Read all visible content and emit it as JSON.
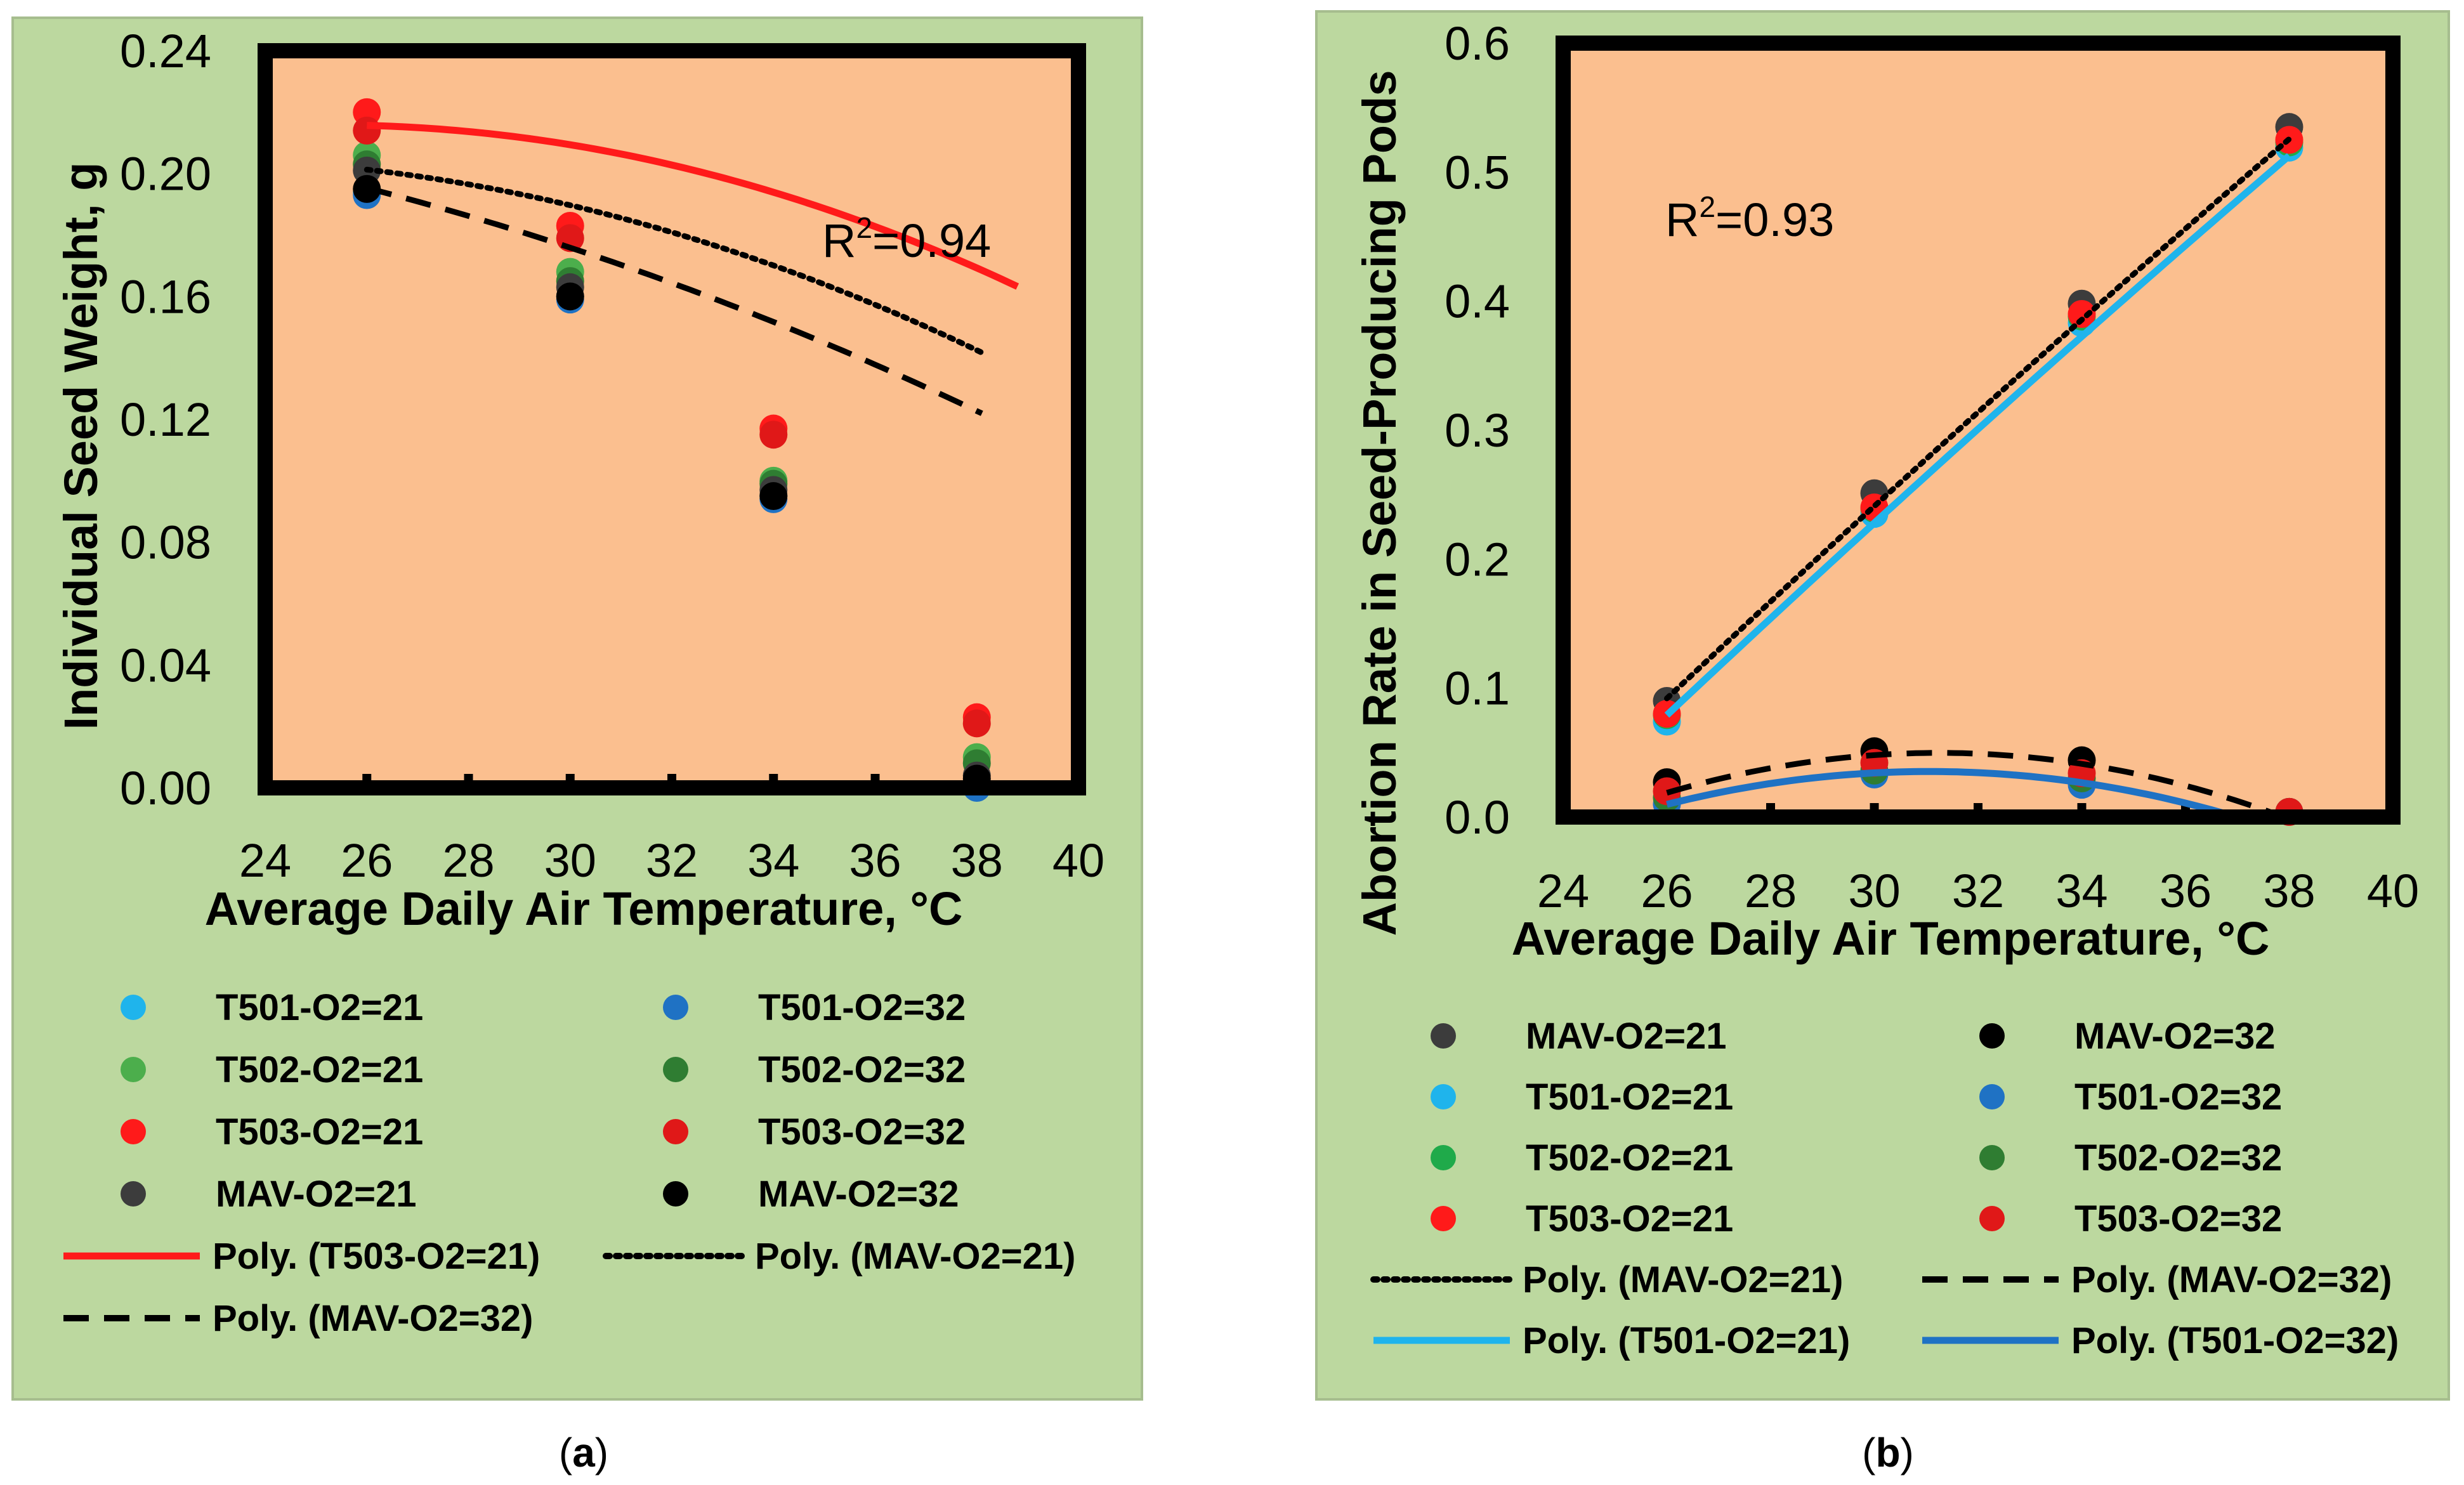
{
  "chart_data": [
    {
      "type": "scatter",
      "panel": "a",
      "caption": {
        "open": "(",
        "letter": "a",
        "close": ")"
      },
      "xlabel": "Average Daily Air Temperature,  °C",
      "ylabel": "Individual Seed Weight,  g",
      "xlim": [
        24,
        40
      ],
      "ylim": [
        0,
        0.24
      ],
      "xticks": [
        24,
        26,
        28,
        30,
        32,
        34,
        36,
        38,
        40
      ],
      "xtick_labels": [
        "24",
        "26",
        "28",
        "30",
        "32",
        "34",
        "36",
        "38",
        "40"
      ],
      "yticks": [
        0,
        0.04,
        0.08,
        0.12,
        0.16,
        0.2,
        0.24
      ],
      "ytick_labels": [
        "0.00",
        "0.04",
        "0.08",
        "0.12",
        "0.16",
        "0.20",
        "0.24"
      ],
      "annotation": {
        "base": "R",
        "sup": "2",
        "rest": "=0.94"
      },
      "x": [
        26,
        30,
        34,
        38
      ],
      "series": [
        {
          "name": "T501-O2=21",
          "color": "#1fb4ec",
          "values": [
            0.194,
            0.16,
            0.095,
            0.001
          ]
        },
        {
          "name": "T501-O2=32",
          "color": "#1f72c4",
          "values": [
            0.193,
            0.159,
            0.094,
            0.0
          ]
        },
        {
          "name": "T502-O2=21",
          "color": "#4cae4c",
          "values": [
            0.206,
            0.168,
            0.1,
            0.01
          ]
        },
        {
          "name": "T502-O2=32",
          "color": "#2f7d32",
          "values": [
            0.203,
            0.165,
            0.099,
            0.008
          ]
        },
        {
          "name": "T503-O2=21",
          "color": "#ff1a1a",
          "values": [
            0.22,
            0.183,
            0.117,
            0.023
          ]
        },
        {
          "name": "T503-O2=32",
          "color": "#e01818",
          "values": [
            0.214,
            0.179,
            0.115,
            0.021
          ]
        },
        {
          "name": "MAV-O2=21",
          "color": "#3c3c3c",
          "values": [
            0.201,
            0.163,
            0.097,
            0.004
          ]
        },
        {
          "name": "MAV-O2=32",
          "color": "#000000",
          "values": [
            0.195,
            0.16,
            0.095,
            0.003
          ]
        }
      ],
      "trendlines": [
        {
          "name": "Poly. (T503-O2=21)",
          "color": "#ff1a1a",
          "style": "solid",
          "coef": [
            -0.000287,
            0.0145,
            0.0327
          ],
          "xrange": [
            26,
            38.8
          ]
        },
        {
          "name": "Poly. (MAV-O2=21)",
          "color": "#000000",
          "style": "dotted",
          "coef": [
            -0.00025,
            0.0111,
            0.0817
          ],
          "xrange": [
            26,
            38.1
          ]
        },
        {
          "name": "Poly. (MAV-O2=32)",
          "color": "#000000",
          "style": "dashed",
          "coef": [
            -0.00015,
            0.00355,
            0.2044
          ],
          "xrange": [
            26,
            38.1
          ]
        }
      ],
      "legend": [
        [
          "T501-O2=21",
          "T501-O2=32"
        ],
        [
          "T502-O2=21",
          "T502-O2=32"
        ],
        [
          "T503-O2=21",
          "T503-O2=32"
        ],
        [
          "MAV-O2=21",
          "MAV-O2=32"
        ],
        [
          "Poly. (T503-O2=21)",
          "Poly. (MAV-O2=21)"
        ],
        [
          "Poly. (MAV-O2=32)",
          null
        ]
      ]
    },
    {
      "type": "scatter",
      "panel": "b",
      "caption": {
        "open": "(",
        "letter": "b",
        "close": ")"
      },
      "xlabel": "Average Daily Air Temperature,  °C",
      "ylabel": "Abortion Rate in Seed-Producing Pods",
      "xlim": [
        24,
        40
      ],
      "ylim": [
        0,
        0.6
      ],
      "xticks": [
        24,
        26,
        28,
        30,
        32,
        34,
        36,
        38,
        40
      ],
      "xtick_labels": [
        "24",
        "26",
        "28",
        "30",
        "32",
        "34",
        "36",
        "38",
        "40"
      ],
      "yticks": [
        0,
        0.1,
        0.2,
        0.3,
        0.4,
        0.5,
        0.6
      ],
      "ytick_labels": [
        "0.0",
        "0.1",
        "0.2",
        "0.3",
        "0.4",
        "0.5",
        "0.6"
      ],
      "annotation": {
        "base": "R",
        "sup": "2",
        "rest": "=0.93"
      },
      "x": [
        26,
        30,
        34,
        38
      ],
      "series": [
        {
          "name": "MAV-O2=21",
          "color": "#3c3c3c",
          "values": [
            0.09,
            0.251,
            0.398,
            0.535
          ]
        },
        {
          "name": "MAV-O2=32",
          "color": "#000000",
          "values": [
            0.027,
            0.051,
            0.044,
            0.004
          ]
        },
        {
          "name": "T501-O2=21",
          "color": "#1fb4ec",
          "values": [
            0.074,
            0.235,
            0.383,
            0.519
          ]
        },
        {
          "name": "T501-O2=32",
          "color": "#1f72c4",
          "values": [
            0.01,
            0.033,
            0.025,
            0.004
          ]
        },
        {
          "name": "T502-O2=21",
          "color": "#1faa4a",
          "values": [
            0.079,
            0.239,
            0.388,
            0.523
          ]
        },
        {
          "name": "T502-O2=32",
          "color": "#2f7d32",
          "values": [
            0.015,
            0.036,
            0.03,
            0.004
          ]
        },
        {
          "name": "T503-O2=21",
          "color": "#ff1a1a",
          "values": [
            0.08,
            0.24,
            0.39,
            0.525
          ]
        },
        {
          "name": "T503-O2=32",
          "color": "#e01818",
          "values": [
            0.02,
            0.042,
            0.034,
            0.004
          ]
        }
      ],
      "trendlines": [
        {
          "name": "Poly. (MAV-O2=21)",
          "color": "#000000",
          "style": "dotted",
          "coef": [
            -0.00014,
            0.0451,
            -0.986
          ],
          "xrange": [
            26,
            38
          ]
        },
        {
          "name": "Poly. (MAV-O2=32)",
          "color": "#000000",
          "style": "dashed",
          "coef": [
            -0.001125,
            0.0703,
            -1.0485
          ],
          "xrange": [
            26,
            38
          ]
        },
        {
          "name": "Poly. (T501-O2=21)",
          "color": "#1fb4ec",
          "style": "solid",
          "coef": [
            -0.00014,
            0.0451,
            -0.999
          ],
          "xrange": [
            26,
            38
          ]
        },
        {
          "name": "Poly. (T501-O2=32)",
          "color": "#1f72c4",
          "style": "solid",
          "coef": [
            -0.001,
            0.0621,
            -0.9288
          ],
          "xrange": [
            26,
            37.2
          ]
        }
      ],
      "legend": [
        [
          "MAV-O2=21",
          "MAV-O2=32"
        ],
        [
          "T501-O2=21",
          "T501-O2=32"
        ],
        [
          "T502-O2=21",
          "T502-O2=32"
        ],
        [
          "T503-O2=21",
          "T503-O2=32"
        ],
        [
          "Poly. (MAV-O2=21)",
          "Poly. (MAV-O2=32)"
        ],
        [
          "Poly. (T501-O2=21)",
          "Poly. (T501-O2=32)"
        ]
      ]
    }
  ]
}
